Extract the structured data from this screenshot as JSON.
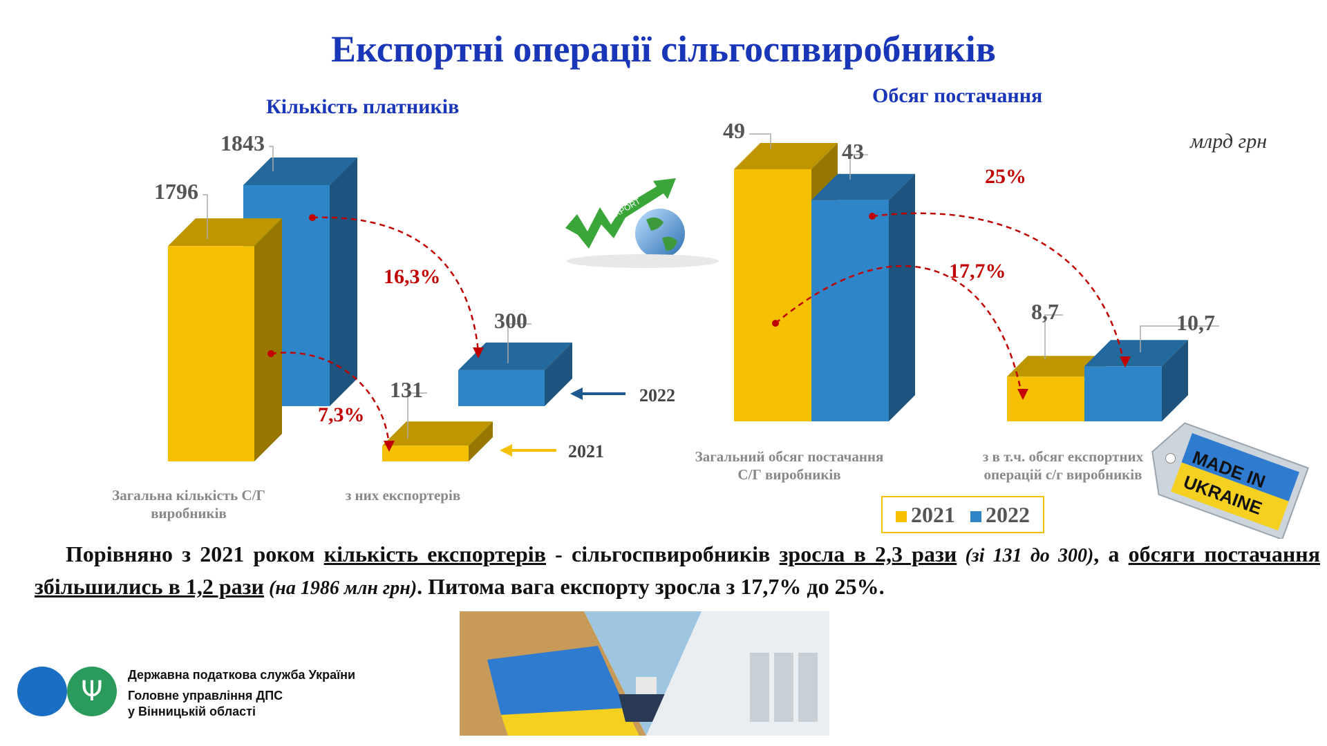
{
  "title": "Експортні операції сільгоспвиробників",
  "unit": "млрд грн",
  "legend": {
    "y2021": "2021",
    "y2022": "2022"
  },
  "colors": {
    "y2021": "#f5c000",
    "y2022": "#2e86c9",
    "accent": "#c00000",
    "title": "#1a36b8"
  },
  "arrow_labels": {
    "y2022": "2022",
    "y2021": "2021"
  },
  "illustrations": {
    "export": "EXPORT",
    "made_in": "MADE IN",
    "ukraine": "UKRAINE"
  },
  "body": {
    "p1": "Порівняно з 2021 роком ",
    "u1": "кількість експортерів",
    "p2": " - сільгоспвиробників ",
    "u2": "зросла в 2,3 рази",
    "i1": " (зі 131 до 300)",
    "p3": ", а ",
    "u3": "обсяги постачання збільшились в 1,2 рази",
    "i2": " (на 1986 млн грн)",
    "p4": ". Питома вага експорту зросла з 17,7% до 25%."
  },
  "footer": {
    "line1": "Державна податкова служба України",
    "line2": "Головне управління ДПС",
    "line3": "у Вінницькій області",
    "logo_icon": "trident-icon"
  },
  "chart_data": [
    {
      "type": "bar",
      "title": "Кількість платників",
      "categories": [
        "Загальна кількість С/Г виробників",
        "з них експортерів"
      ],
      "series": [
        {
          "name": "2021",
          "values": [
            1796,
            131
          ]
        },
        {
          "name": "2022",
          "values": [
            1843,
            300
          ]
        }
      ],
      "annotations": [
        "16,3%",
        "7,3%"
      ]
    },
    {
      "type": "bar",
      "title": "Обсяг постачання",
      "categories": [
        "Загальний обсяг постачання С/Г виробників",
        "з в т.ч. обсяг експортних операцій с/г виробників"
      ],
      "series": [
        {
          "name": "2021",
          "values": [
            49,
            8.7
          ]
        },
        {
          "name": "2022",
          "values": [
            43,
            10.7
          ]
        }
      ],
      "annotations": [
        "25%",
        "17,7%"
      ]
    }
  ]
}
